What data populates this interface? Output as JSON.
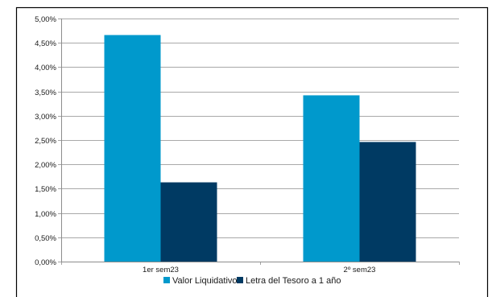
{
  "chart_data": {
    "type": "bar",
    "categories": [
      "1er sem23",
      "2º sem23"
    ],
    "series": [
      {
        "name": "Valor Liquidativo",
        "values": [
          4.66,
          3.42
        ],
        "color": "#0099cc"
      },
      {
        "name": "Letra del Tesoro a 1 año",
        "values": [
          1.63,
          2.46
        ],
        "color": "#003a63"
      }
    ],
    "ylim": [
      0,
      5
    ],
    "yticks": [
      "0,00%",
      "0,50%",
      "1,00%",
      "1,50%",
      "2,00%",
      "2,50%",
      "3,00%",
      "3,50%",
      "4,00%",
      "4,50%",
      "5,00%"
    ],
    "grid": true,
    "legend_position": "bottom",
    "title": "",
    "xlabel": "",
    "ylabel": ""
  }
}
